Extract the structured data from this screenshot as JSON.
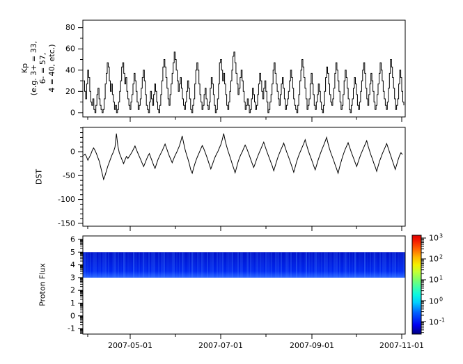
{
  "figure": {
    "background": "#ffffff",
    "text_color": "#000000"
  },
  "chart_data": [
    {
      "id": "kp",
      "type": "line",
      "style": "step",
      "ylabel_lines": [
        "Kp",
        "(e.g. 3+ = 33,",
        "6- = 57,",
        "4 = 40, etc.)"
      ],
      "yticks": [
        0,
        20,
        40,
        60,
        80
      ],
      "ytick_minor_step": 10,
      "ylim": [
        -4,
        87
      ],
      "line_color": "#000000",
      "values": [
        30,
        20,
        13,
        27,
        40,
        33,
        20,
        10,
        7,
        13,
        3,
        0,
        7,
        17,
        23,
        13,
        7,
        3,
        0,
        3,
        13,
        27,
        37,
        47,
        43,
        30,
        20,
        27,
        17,
        10,
        3,
        7,
        0,
        3,
        10,
        20,
        30,
        43,
        47,
        37,
        27,
        33,
        20,
        13,
        7,
        3,
        10,
        17,
        27,
        37,
        30,
        20,
        10,
        3,
        7,
        13,
        23,
        33,
        40,
        30,
        17,
        7,
        3,
        0,
        10,
        20,
        13,
        7,
        17,
        27,
        20,
        10,
        3,
        0,
        7,
        17,
        30,
        43,
        50,
        43,
        33,
        23,
        13,
        7,
        17,
        27,
        37,
        47,
        57,
        50,
        40,
        30,
        20,
        27,
        33,
        23,
        13,
        7,
        3,
        10,
        20,
        30,
        23,
        13,
        3,
        0,
        7,
        13,
        27,
        40,
        47,
        40,
        27,
        17,
        10,
        3,
        7,
        17,
        23,
        13,
        7,
        3,
        10,
        23,
        33,
        27,
        17,
        7,
        0,
        3,
        13,
        27,
        47,
        50,
        40,
        30,
        37,
        27,
        17,
        7,
        3,
        10,
        20,
        30,
        40,
        53,
        57,
        47,
        37,
        27,
        17,
        23,
        33,
        40,
        30,
        20,
        10,
        3,
        7,
        13,
        7,
        0,
        3,
        13,
        23,
        17,
        10,
        3,
        7,
        17,
        27,
        37,
        30,
        20,
        13,
        23,
        30,
        20,
        10,
        0,
        3,
        10,
        17,
        27,
        40,
        47,
        37,
        27,
        20,
        13,
        7,
        17,
        27,
        33,
        23,
        13,
        3,
        7,
        13,
        20,
        30,
        40,
        33,
        23,
        13,
        7,
        3,
        0,
        7,
        17,
        30,
        40,
        50,
        43,
        33,
        23,
        13,
        3,
        7,
        13,
        27,
        37,
        27,
        17,
        7,
        3,
        10,
        17,
        27,
        20,
        10,
        3,
        0,
        7,
        20,
        33,
        43,
        37,
        27,
        17,
        10,
        7,
        13,
        23,
        37,
        47,
        40,
        30,
        20,
        10,
        3,
        7,
        17,
        30,
        40,
        33,
        23,
        13,
        3,
        0,
        7,
        13,
        23,
        33,
        27,
        17,
        7,
        3,
        10,
        20,
        30,
        40,
        47,
        37,
        23,
        13,
        7,
        17,
        27,
        37,
        30,
        20,
        10,
        3,
        7,
        17,
        27,
        37,
        47,
        40,
        30,
        20,
        13,
        7,
        3,
        10,
        23,
        37,
        50,
        43,
        33,
        23,
        13,
        3,
        7,
        13,
        27,
        40,
        33,
        20,
        10,
        7
      ]
    },
    {
      "id": "dst",
      "type": "line",
      "style": "line",
      "ylabel": "DST",
      "yticks": [
        0,
        -50,
        -100,
        -150
      ],
      "ytick_minor_step": 10,
      "ylim": [
        -156,
        51
      ],
      "line_color": "#000000",
      "values": [
        -8,
        -5,
        -10,
        -18,
        -12,
        -6,
        2,
        8,
        3,
        -4,
        -12,
        -20,
        -32,
        -45,
        -58,
        -50,
        -40,
        -30,
        -22,
        -14,
        -6,
        0,
        10,
        38,
        12,
        -2,
        -10,
        -18,
        -25,
        -17,
        -10,
        -14,
        -10,
        -5,
        0,
        6,
        12,
        4,
        -3,
        -10,
        -17,
        -24,
        -31,
        -24,
        -16,
        -9,
        -4,
        -12,
        -20,
        -28,
        -35,
        -26,
        -17,
        -10,
        -4,
        2,
        9,
        16,
        8,
        -1,
        -9,
        -16,
        -23,
        -15,
        -8,
        -2,
        5,
        12,
        22,
        33,
        18,
        5,
        -6,
        -15,
        -26,
        -38,
        -45,
        -34,
        -24,
        -15,
        -8,
        -1,
        6,
        13,
        7,
        -1,
        -9,
        -18,
        -27,
        -36,
        -28,
        -19,
        -11,
        -5,
        1,
        8,
        15,
        25,
        38,
        24,
        12,
        2,
        -7,
        -16,
        -26,
        -35,
        -44,
        -33,
        -22,
        -13,
        -6,
        0,
        7,
        14,
        8,
        0,
        -8,
        -17,
        -25,
        -33,
        -25,
        -16,
        -8,
        -1,
        6,
        13,
        20,
        11,
        2,
        -6,
        -14,
        -22,
        -30,
        -40,
        -30,
        -20,
        -11,
        -3,
        4,
        11,
        18,
        9,
        0,
        -8,
        -16,
        -25,
        -34,
        -43,
        -32,
        -21,
        -12,
        -4,
        3,
        10,
        17,
        25,
        14,
        4,
        -5,
        -13,
        -21,
        -30,
        -38,
        -28,
        -18,
        -9,
        -1,
        7,
        14,
        22,
        30,
        17,
        6,
        -3,
        -11,
        -19,
        -28,
        -36,
        -45,
        -33,
        -22,
        -12,
        -3,
        5,
        12,
        19,
        10,
        1,
        -7,
        -15,
        -23,
        -31,
        -22,
        -13,
        -5,
        2,
        9,
        16,
        23,
        12,
        2,
        -7,
        -15,
        -24,
        -32,
        -41,
        -30,
        -20,
        -12,
        -4,
        3,
        10,
        17,
        8,
        -1,
        -10,
        -19,
        -28,
        -37,
        -27,
        -17,
        -8,
        -2,
        -6
      ]
    },
    {
      "id": "proton_flux",
      "type": "heatmap",
      "ylabel": "Proton Flux",
      "yticks": [
        -1,
        0,
        1,
        2,
        3,
        4,
        5,
        6
      ],
      "ytick_minor": "log",
      "ylim": [
        -1.43,
        6.27
      ],
      "band": {
        "y_min": 3,
        "y_max": 5,
        "flux_log10_range": [
          -1.4,
          -0.6
        ]
      },
      "band_colors": {
        "top": "#0011c8",
        "mid": "#0028f2",
        "low": "#0034ff",
        "bottom_streaks": "#4d8cff"
      },
      "colormap": "jet"
    }
  ],
  "xaxis": {
    "tick_labels": [
      "2007-05-01",
      "2007-07-01",
      "2007-09-01",
      "2007-11-01"
    ],
    "minor_months": [
      "2007-04-01",
      "2007-06-01",
      "2007-08-01",
      "2007-10-01"
    ],
    "range": [
      "2007-03-29",
      "2007-11-02"
    ]
  },
  "colorbar": {
    "scale": "log",
    "tick_labels": [
      {
        "mantissa": "10",
        "exponent": "3"
      },
      {
        "mantissa": "10",
        "exponent": "2"
      },
      {
        "mantissa": "10",
        "exponent": "1"
      },
      {
        "mantissa": "10",
        "exponent": "0"
      },
      {
        "mantissa": "10",
        "exponent": "-1"
      }
    ],
    "tick_exponents": [
      3,
      2,
      1,
      0,
      -1
    ],
    "gradient_stops": [
      [
        0.0,
        "#000080"
      ],
      [
        0.09,
        "#0000f0"
      ],
      [
        0.22,
        "#0064ff"
      ],
      [
        0.32,
        "#00d0ff"
      ],
      [
        0.4,
        "#0cf8e0"
      ],
      [
        0.48,
        "#45ffa5"
      ],
      [
        0.55,
        "#7dff6b"
      ],
      [
        0.63,
        "#c3ff33"
      ],
      [
        0.7,
        "#f4f000"
      ],
      [
        0.78,
        "#ffb400"
      ],
      [
        0.86,
        "#ff6400"
      ],
      [
        0.94,
        "#f51e00"
      ],
      [
        1.0,
        "#e00000"
      ]
    ]
  }
}
